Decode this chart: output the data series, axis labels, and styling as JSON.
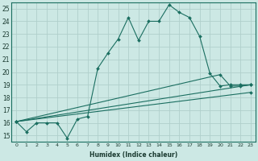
{
  "xlabel": "Humidex (Indice chaleur)",
  "xlim": [
    -0.5,
    23.5
  ],
  "ylim": [
    14.5,
    25.5
  ],
  "xticks": [
    0,
    1,
    2,
    3,
    4,
    5,
    6,
    7,
    8,
    9,
    10,
    11,
    12,
    13,
    14,
    15,
    16,
    17,
    18,
    19,
    20,
    21,
    22,
    23
  ],
  "yticks": [
    15,
    16,
    17,
    18,
    19,
    20,
    21,
    22,
    23,
    24,
    25
  ],
  "bg_color": "#cce8e4",
  "grid_color": "#b0cfcb",
  "line_color": "#1a6e60",
  "series": [
    {
      "x": [
        0,
        1,
        2,
        3,
        4,
        5,
        6,
        7,
        8,
        9,
        10,
        11,
        12,
        13,
        14,
        15,
        16,
        17,
        18,
        19,
        20,
        21,
        22,
        23
      ],
      "y": [
        16.1,
        15.3,
        16.0,
        16.0,
        16.0,
        14.8,
        16.3,
        16.5,
        20.3,
        21.5,
        22.6,
        24.3,
        22.5,
        24.0,
        24.0,
        25.3,
        24.7,
        24.3,
        22.8,
        19.9,
        18.9,
        19.0,
        19.0,
        19.0
      ]
    },
    {
      "x": [
        0,
        20,
        21,
        22,
        23
      ],
      "y": [
        16.1,
        19.8,
        18.9,
        18.9,
        19.0
      ]
    },
    {
      "x": [
        0,
        23
      ],
      "y": [
        16.1,
        19.0
      ]
    },
    {
      "x": [
        0,
        23
      ],
      "y": [
        16.1,
        18.4
      ]
    }
  ]
}
